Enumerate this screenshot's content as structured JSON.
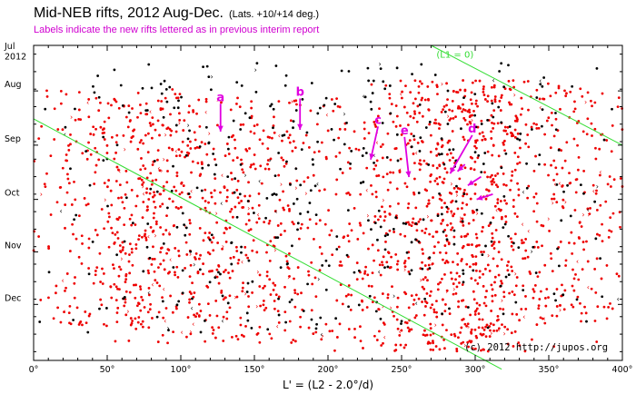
{
  "header": {
    "title": "Mid-NEB rifts, 2012 Aug-Dec.",
    "subtitle": "(Lats. +10/+14 deg.)",
    "note": "Labels indicate the new rifts lettered as in previous interim report"
  },
  "chart_data": {
    "type": "scatter",
    "title": "Mid-NEB rifts, 2012 Aug-Dec.",
    "subtitle": "(Lats. +10/+14 deg.)",
    "xlabel": "L' = (L2 - 2.0°/d)",
    "ylabel": "",
    "xlim": [
      0,
      400
    ],
    "ylim_days": [
      0,
      180
    ],
    "x_tick_values": [
      0,
      50,
      100,
      150,
      200,
      250,
      300,
      350,
      400
    ],
    "x_tick_labels": [
      "0°",
      "50°",
      "100°",
      "150°",
      "200°",
      "250°",
      "300°",
      "350°",
      "400°"
    ],
    "y_ticks": [
      {
        "label": "Jul",
        "day": 0
      },
      {
        "label": "2012",
        "day": 10
      },
      {
        "label": "Aug",
        "day": 26
      },
      {
        "label": "Sep",
        "day": 57
      },
      {
        "label": "Oct",
        "day": 88
      },
      {
        "label": "Nov",
        "day": 118
      },
      {
        "label": "Dec",
        "day": 148
      }
    ],
    "grid": false,
    "credit": "(c) 2012 http://jupos.org",
    "trend_lines": [
      {
        "label": "(L1 = 0)",
        "color": "#33dd33",
        "points": [
          [
            270,
            0
          ],
          [
            400,
            57
          ],
          [
            400,
            57
          ]
        ]
      },
      {
        "label": "",
        "color": "#33dd33",
        "points": [
          [
            0,
            42
          ],
          [
            318,
            185
          ]
        ]
      }
    ],
    "series": [
      {
        "name": "",
        "color": "#ee0000",
        "description": "dense clusters of red points",
        "clusters": [
          {
            "x_center": 130,
            "x_spread": 90,
            "day_start": 30,
            "day_end": 170,
            "count": 700
          },
          {
            "x_center": 290,
            "x_spread": 60,
            "day_start": 20,
            "day_end": 175,
            "count": 900
          },
          {
            "x_center": 60,
            "x_spread": 55,
            "day_start": 25,
            "day_end": 160,
            "count": 300
          },
          {
            "x_center": 370,
            "x_spread": 40,
            "day_start": 25,
            "day_end": 160,
            "count": 200
          }
        ]
      },
      {
        "name": "",
        "color": "#000000",
        "description": "black points scattered across the field",
        "clusters": [
          {
            "x_center": 150,
            "x_spread": 130,
            "day_start": 10,
            "day_end": 165,
            "count": 300
          },
          {
            "x_center": 310,
            "x_spread": 90,
            "day_start": 10,
            "day_end": 160,
            "count": 150
          }
        ]
      }
    ],
    "annotations": [
      {
        "label": "a",
        "x": 127,
        "day": 38,
        "tip_x": 127,
        "tip_day": 42
      },
      {
        "label": "b",
        "x": 181,
        "day": 35,
        "tip_x": 181,
        "tip_day": 41
      },
      {
        "label": "c",
        "x": 234,
        "day": 51,
        "tip_x": 229,
        "tip_day": 58
      },
      {
        "label": "e",
        "x": 252,
        "day": 57,
        "tip_x": 255,
        "tip_day": 68
      },
      {
        "label": "d",
        "x": 298,
        "day": 56,
        "tip_x": 283,
        "tip_day": 66
      }
    ],
    "arrow_only": [
      {
        "from_x": 293,
        "from_day": 68,
        "to_x": 288,
        "to_day": 72
      },
      {
        "from_x": 304,
        "from_day": 75,
        "to_x": 295,
        "to_day": 80
      },
      {
        "from_x": 312,
        "from_day": 85,
        "to_x": 301,
        "to_day": 88
      }
    ]
  }
}
